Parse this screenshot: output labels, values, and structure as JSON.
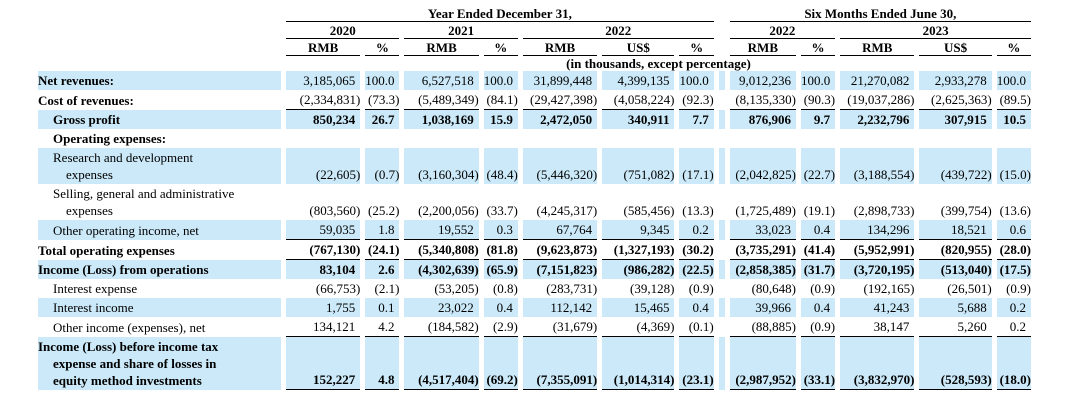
{
  "colors": {
    "stripe": "#CBE9F8",
    "text": "#000000",
    "rule_line": "#000000",
    "background": "#FFFFFF"
  },
  "table": {
    "unit_note": "(in thousands, except percentage)",
    "periods": [
      {
        "label": "Year Ended December 31,"
      },
      {
        "label": "Six Months Ended June 30,"
      }
    ],
    "year_groups": [
      {
        "label": "2020",
        "cols": [
          "RMB",
          "%"
        ]
      },
      {
        "label": "2021",
        "cols": [
          "RMB",
          "%"
        ]
      },
      {
        "label": "2022",
        "cols": [
          "RMB",
          "US$",
          "%"
        ]
      },
      {
        "label": "2022",
        "cols": [
          "RMB",
          "%"
        ]
      },
      {
        "label": "2023",
        "cols": [
          "RMB",
          "US$",
          "%"
        ]
      }
    ],
    "rows": [
      {
        "lines": [
          {
            "text": "Net revenues:",
            "indent": 0
          }
        ],
        "bold_label": true,
        "bold_values": false,
        "shaded": true,
        "underline_values": false,
        "values": [
          "3,185,065",
          "100.0",
          "6,527,518",
          "100.0",
          "31,899,448",
          "4,399,135",
          "100.0",
          "9,012,236",
          "100.0",
          "21,270,082",
          "2,933,278",
          "100.0"
        ]
      },
      {
        "lines": [
          {
            "text": "Cost of revenues:",
            "indent": 0
          }
        ],
        "bold_label": true,
        "bold_values": false,
        "shaded": false,
        "underline_values": true,
        "values": [
          "(2,334,831)",
          "(73.3)",
          "(5,489,349)",
          "(84.1)",
          "(29,427,398)",
          "(4,058,224)",
          "(92.3)",
          "(8,135,330)",
          "(90.3)",
          "(19,037,286)",
          "(2,625,363)",
          "(89.5)"
        ]
      },
      {
        "lines": [
          {
            "text": "Gross profit",
            "indent": 1
          }
        ],
        "bold_label": true,
        "bold_values": true,
        "shaded": true,
        "underline_values": false,
        "values": [
          "850,234",
          "26.7",
          "1,038,169",
          "15.9",
          "2,472,050",
          "340,911",
          "7.7",
          "876,906",
          "9.7",
          "2,232,796",
          "307,915",
          "10.5"
        ]
      },
      {
        "lines": [
          {
            "text": "Operating expenses:",
            "indent": 1
          }
        ],
        "bold_label": true,
        "bold_values": false,
        "shaded": false,
        "underline_values": false,
        "values": [
          "",
          "",
          "",
          "",
          "",
          "",
          "",
          "",
          "",
          "",
          "",
          ""
        ]
      },
      {
        "lines": [
          {
            "text": "Research and development",
            "indent": 1
          },
          {
            "text": "expenses",
            "indent": 2
          }
        ],
        "bold_label": false,
        "bold_values": false,
        "shaded": true,
        "underline_values": false,
        "values": [
          "(22,605)",
          "(0.7)",
          "(3,160,304)",
          "(48.4)",
          "(5,446,320)",
          "(751,082)",
          "(17.1)",
          "(2,042,825)",
          "(22.7)",
          "(3,188,554)",
          "(439,722)",
          "(15.0)"
        ]
      },
      {
        "lines": [
          {
            "text": "Selling, general and administrative",
            "indent": 1
          },
          {
            "text": "expenses",
            "indent": 2
          }
        ],
        "bold_label": false,
        "bold_values": false,
        "shaded": false,
        "underline_values": false,
        "values": [
          "(803,560)",
          "(25.2)",
          "(2,200,056)",
          "(33.7)",
          "(4,245,317)",
          "(585,456)",
          "(13.3)",
          "(1,725,489)",
          "(19.1)",
          "(2,898,733)",
          "(399,754)",
          "(13.6)"
        ]
      },
      {
        "lines": [
          {
            "text": "Other operating income, net",
            "indent": 1
          }
        ],
        "bold_label": false,
        "bold_values": false,
        "shaded": true,
        "underline_values": true,
        "values": [
          "59,035",
          "1.8",
          "19,552",
          "0.3",
          "67,764",
          "9,345",
          "0.2",
          "33,023",
          "0.4",
          "134,296",
          "18,521",
          "0.6"
        ]
      },
      {
        "lines": [
          {
            "text": "Total operating expenses",
            "indent": 0
          }
        ],
        "bold_label": true,
        "bold_values": true,
        "shaded": false,
        "underline_values": true,
        "values": [
          "(767,130)",
          "(24.1)",
          "(5,340,808)",
          "(81.8)",
          "(9,623,873)",
          "(1,327,193)",
          "(30.2)",
          "(3,735,291)",
          "(41.4)",
          "(5,952,991)",
          "(820,955)",
          "(28.0)"
        ]
      },
      {
        "lines": [
          {
            "text": "Income (Loss) from operations",
            "indent": 0
          }
        ],
        "bold_label": true,
        "bold_values": true,
        "shaded": true,
        "underline_values": false,
        "values": [
          "83,104",
          "2.6",
          "(4,302,639)",
          "(65.9)",
          "(7,151,823)",
          "(986,282)",
          "(22.5)",
          "(2,858,385)",
          "(31.7)",
          "(3,720,195)",
          "(513,040)",
          "(17.5)"
        ]
      },
      {
        "lines": [
          {
            "text": "Interest expense",
            "indent": 1
          }
        ],
        "bold_label": false,
        "bold_values": false,
        "shaded": false,
        "underline_values": false,
        "values": [
          "(66,753)",
          "(2.1)",
          "(53,205)",
          "(0.8)",
          "(283,731)",
          "(39,128)",
          "(0.9)",
          "(80,648)",
          "(0.9)",
          "(192,165)",
          "(26,501)",
          "(0.9)"
        ]
      },
      {
        "lines": [
          {
            "text": "Interest income",
            "indent": 1
          }
        ],
        "bold_label": false,
        "bold_values": false,
        "shaded": true,
        "underline_values": false,
        "values": [
          "1,755",
          "0.1",
          "23,022",
          "0.4",
          "112,142",
          "15,465",
          "0.4",
          "39,966",
          "0.4",
          "41,243",
          "5,688",
          "0.2"
        ]
      },
      {
        "lines": [
          {
            "text": "Other income (expenses), net",
            "indent": 1
          }
        ],
        "bold_label": false,
        "bold_values": false,
        "shaded": false,
        "underline_values": true,
        "values": [
          "134,121",
          "4.2",
          "(184,582)",
          "(2.9)",
          "(31,679)",
          "(4,369)",
          "(0.1)",
          "(88,885)",
          "(0.9)",
          "38,147",
          "5,260",
          "0.2"
        ]
      },
      {
        "lines": [
          {
            "text": "Income (Loss) before income tax",
            "indent": 0
          },
          {
            "text": "expense and share of losses in",
            "indent": 1
          },
          {
            "text": "equity method investments",
            "indent": 1
          }
        ],
        "bold_label": true,
        "bold_values": true,
        "shaded": true,
        "underline_values": true,
        "values": [
          "152,227",
          "4.8",
          "(4,517,404)",
          "(69.2)",
          "(7,355,091)",
          "(1,014,314)",
          "(23.1)",
          "(2,987,952)",
          "(33.1)",
          "(3,832,970)",
          "(528,593)",
          "(18.0)"
        ]
      }
    ]
  }
}
